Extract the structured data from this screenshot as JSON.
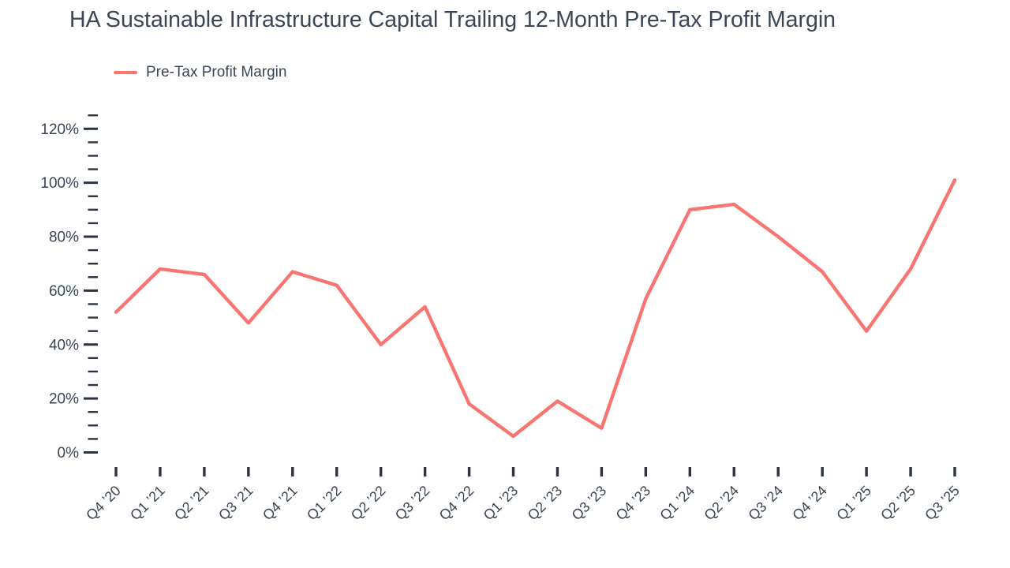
{
  "chart_data": {
    "type": "line",
    "title": "HA Sustainable Infrastructure Capital Trailing 12-Month Pre-Tax Profit Margin",
    "categories": [
      "Q4 ’20",
      "Q1 ’21",
      "Q2 ’21",
      "Q3 ’21",
      "Q4 ’21",
      "Q1 ’22",
      "Q2 ’22",
      "Q3 ’22",
      "Q4 ’22",
      "Q1 ’23",
      "Q2 ’23",
      "Q3 ’23",
      "Q4 ’23",
      "Q1 ’24",
      "Q2 ’24",
      "Q3 ’24",
      "Q4 ’24",
      "Q1 ’25",
      "Q2 ’25",
      "Q3 ’25"
    ],
    "series": [
      {
        "name": "Pre-Tax Profit Margin",
        "color": "#F87571",
        "values_percent": [
          52,
          68,
          66,
          48,
          67,
          62,
          40,
          54,
          18,
          6,
          19,
          9,
          57,
          90,
          92,
          80,
          67,
          45,
          68,
          101
        ]
      }
    ],
    "legend": {
      "position": "top-left",
      "entries": [
        "Pre-Tax Profit Margin"
      ]
    },
    "y_axis": {
      "min": 0,
      "max": 125,
      "major_step": 20,
      "minor_step": 5,
      "unit": "%",
      "tick_labels": [
        "0%",
        "20%",
        "40%",
        "60%",
        "80%",
        "100%",
        "120%"
      ]
    },
    "x_axis": {
      "label_rotation_deg": -45
    },
    "grid": false,
    "colors": {
      "text": "#3A4656",
      "tick": "#2B3340",
      "line": "#F87571"
    }
  }
}
